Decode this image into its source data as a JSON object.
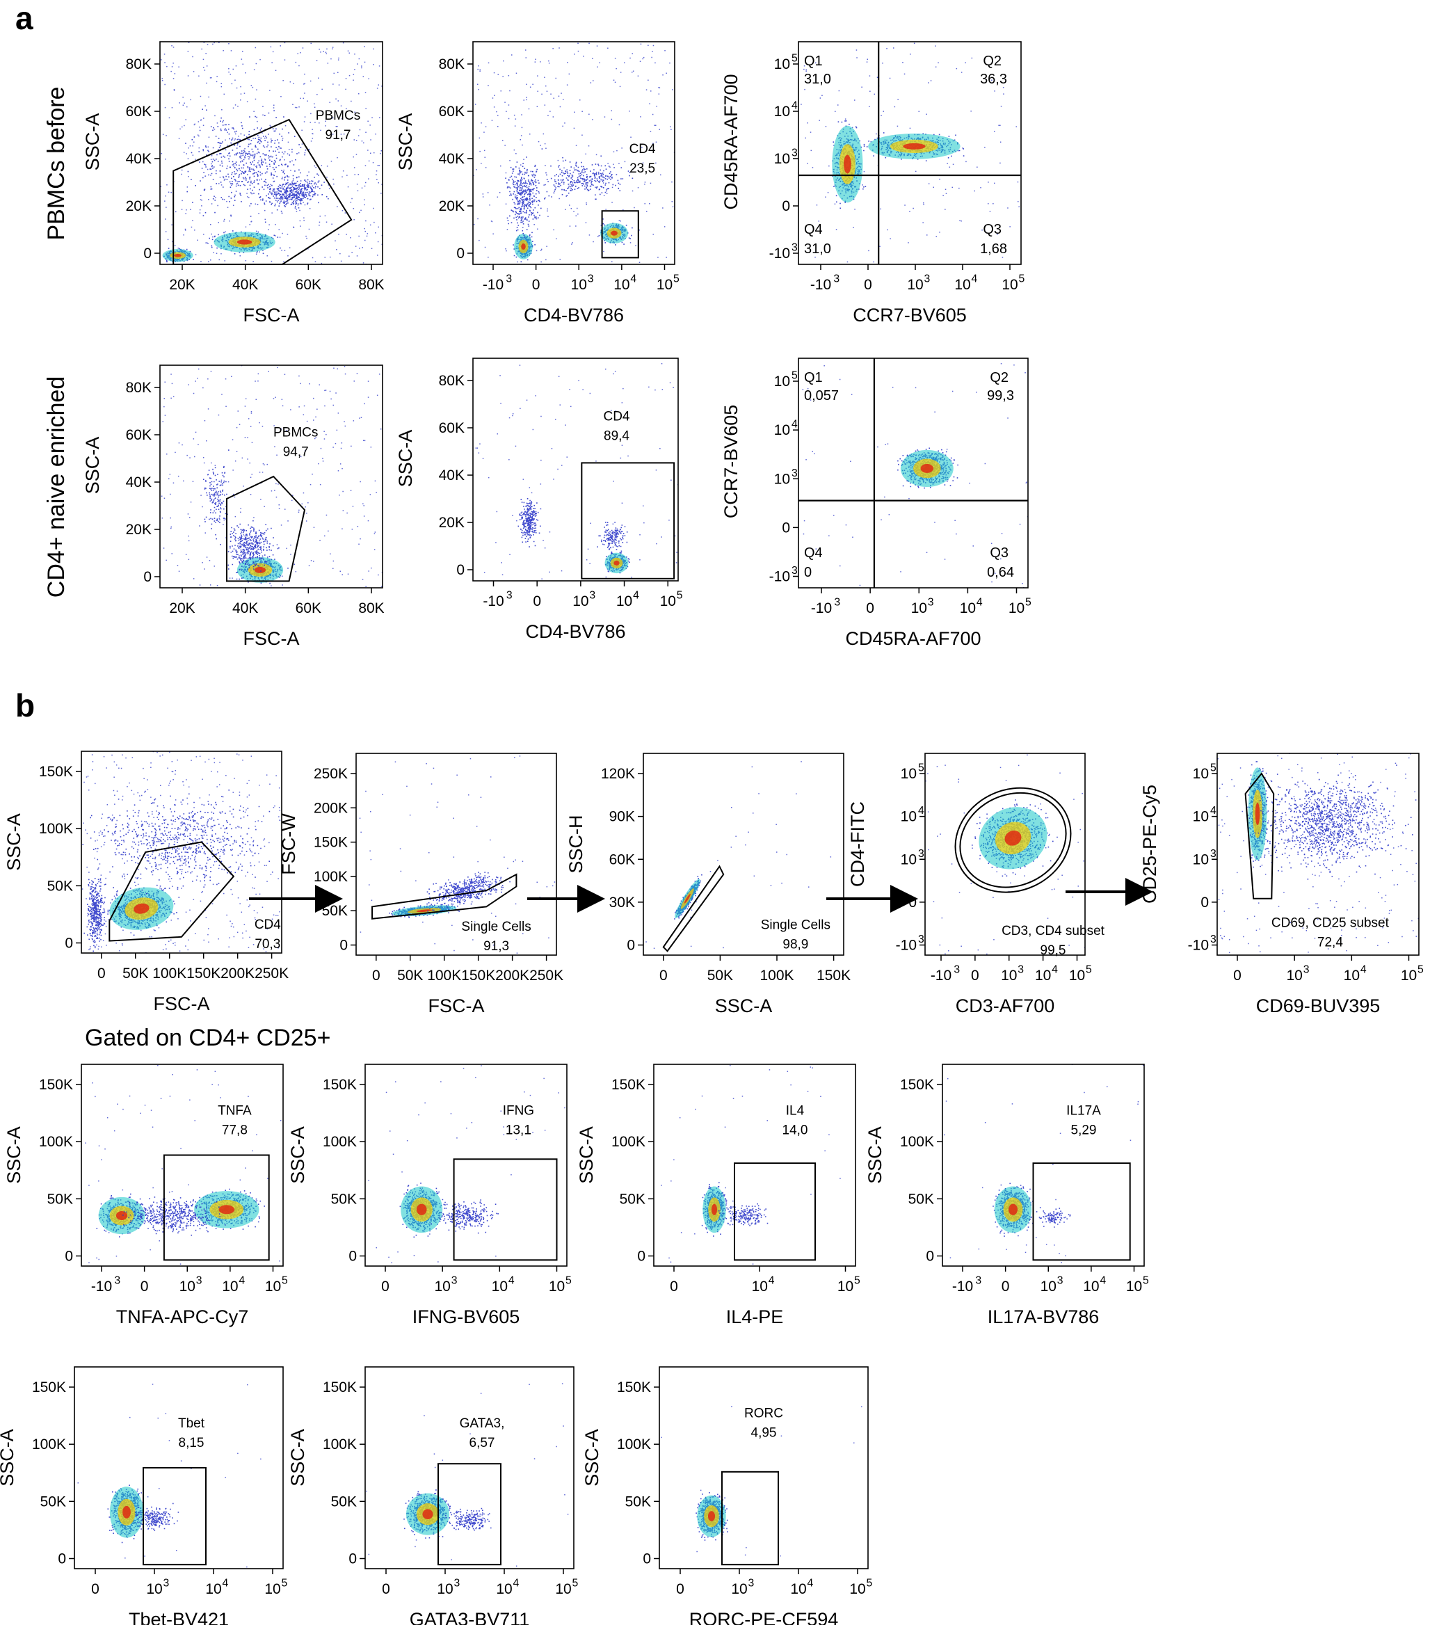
{
  "figure": {
    "panel_a_label": "a",
    "panel_b_label": "b",
    "row_labels": [
      "PBMCs before",
      "CD4+ naive enriched"
    ],
    "gated_heading": "Gated on CD4+ CD25+"
  },
  "colors": {
    "frame": "#000000",
    "dots": "#2a35c8",
    "density_mid": "#19c8c8",
    "density_high": "#ffd000",
    "density_peak": "#e02010"
  },
  "chart_data": [
    {
      "type": "scatter",
      "id": "a1",
      "panel": "a",
      "row": 1,
      "xlabel": "FSC-A",
      "ylabel": "SSC-A",
      "xticks": [
        "20K",
        "40K",
        "60K",
        "80K"
      ],
      "yticks": [
        "0",
        "20K",
        "40K",
        "60K",
        "80K"
      ],
      "gates": [
        {
          "name": "PBMCs",
          "value": "91,7"
        }
      ]
    },
    {
      "type": "scatter",
      "id": "a2",
      "panel": "a",
      "row": 1,
      "xlabel": "CD4-BV786",
      "ylabel": "SSC-A",
      "xticks": [
        "-10^3",
        "0",
        "10^3",
        "10^4",
        "10^5"
      ],
      "yticks": [
        "0",
        "20K",
        "40K",
        "60K",
        "80K"
      ],
      "gates": [
        {
          "name": "CD4",
          "value": "23,5"
        }
      ]
    },
    {
      "type": "scatter",
      "id": "a3",
      "panel": "a",
      "row": 1,
      "xlabel": "CCR7-BV605",
      "ylabel": "CD45RA-AF700",
      "xticks": [
        "-10^3",
        "0",
        "10^3",
        "10^4",
        "10^5"
      ],
      "yticks": [
        "-10^3",
        "0",
        "10^3",
        "10^4",
        "10^5"
      ],
      "quadrants": [
        {
          "name": "Q1",
          "value": "31,0"
        },
        {
          "name": "Q2",
          "value": "36,3"
        },
        {
          "name": "Q3",
          "value": "1,68"
        },
        {
          "name": "Q4",
          "value": "31,0"
        }
      ]
    },
    {
      "type": "scatter",
      "id": "a4",
      "panel": "a",
      "row": 2,
      "xlabel": "FSC-A",
      "ylabel": "SSC-A",
      "xticks": [
        "20K",
        "40K",
        "60K",
        "80K"
      ],
      "yticks": [
        "0",
        "20K",
        "40K",
        "60K",
        "80K"
      ],
      "gates": [
        {
          "name": "PBMCs",
          "value": "94,7"
        }
      ]
    },
    {
      "type": "scatter",
      "id": "a5",
      "panel": "a",
      "row": 2,
      "xlabel": "CD4-BV786",
      "ylabel": "SSC-A",
      "xticks": [
        "-10^3",
        "0",
        "10^3",
        "10^4",
        "10^5"
      ],
      "yticks": [
        "0",
        "20K",
        "40K",
        "60K",
        "80K"
      ],
      "gates": [
        {
          "name": "CD4",
          "value": "89,4"
        }
      ]
    },
    {
      "type": "scatter",
      "id": "a6",
      "panel": "a",
      "row": 2,
      "xlabel": "CD45RA-AF700",
      "ylabel": "CCR7-BV605",
      "xticks": [
        "-10^3",
        "0",
        "10^3",
        "10^4",
        "10^5"
      ],
      "yticks": [
        "-10^3",
        "0",
        "10^3",
        "10^4",
        "10^5"
      ],
      "quadrants": [
        {
          "name": "Q1",
          "value": "0,057"
        },
        {
          "name": "Q2",
          "value": "99,3"
        },
        {
          "name": "Q3",
          "value": "0,64"
        },
        {
          "name": "Q4",
          "value": "0"
        }
      ]
    },
    {
      "type": "scatter",
      "id": "b1",
      "panel": "b",
      "row": 1,
      "xlabel": "FSC-A",
      "ylabel": "SSC-A",
      "xticks": [
        "0",
        "50K",
        "100K",
        "150K",
        "200K",
        "250K"
      ],
      "yticks": [
        "0",
        "50K",
        "100K",
        "150K"
      ],
      "gates": [
        {
          "name": "CD4",
          "value": "70,3"
        }
      ]
    },
    {
      "type": "scatter",
      "id": "b2",
      "panel": "b",
      "row": 1,
      "xlabel": "FSC-A",
      "ylabel": "FSC-W",
      "xticks": [
        "0",
        "50K",
        "100K",
        "150K",
        "200K",
        "250K"
      ],
      "yticks": [
        "0",
        "50K",
        "100K",
        "150K",
        "200K",
        "250K"
      ],
      "gates": [
        {
          "name": "Single Cells",
          "value": "91,3"
        }
      ]
    },
    {
      "type": "scatter",
      "id": "b3",
      "panel": "b",
      "row": 1,
      "xlabel": "SSC-A",
      "ylabel": "SSC-H",
      "xticks": [
        "0",
        "50K",
        "100K",
        "150K"
      ],
      "yticks": [
        "0",
        "30K",
        "60K",
        "90K",
        "120K"
      ],
      "gates": [
        {
          "name": "Single Cells",
          "value": "98,9"
        }
      ]
    },
    {
      "type": "scatter",
      "id": "b4",
      "panel": "b",
      "row": 1,
      "xlabel": "CD3-AF700",
      "ylabel": "CD4-FITC",
      "xticks": [
        "-10^3",
        "0",
        "10^3",
        "10^4",
        "10^5"
      ],
      "yticks": [
        "-10^3",
        "0",
        "10^3",
        "10^4",
        "10^5"
      ],
      "gates": [
        {
          "name": "CD3, CD4 subset",
          "value": "99,5"
        }
      ]
    },
    {
      "type": "scatter",
      "id": "b5",
      "panel": "b",
      "row": 1,
      "xlabel": "CD69-BUV395",
      "ylabel": "CD25-PE-Cy5",
      "xticks": [
        "0",
        "10^3",
        "10^4",
        "10^5"
      ],
      "yticks": [
        "-10^3",
        "0",
        "10^3",
        "10^4",
        "10^5"
      ],
      "gates": [
        {
          "name": "CD69, CD25 subset",
          "value": "72,4"
        }
      ]
    },
    {
      "type": "scatter",
      "id": "b6",
      "panel": "b",
      "row": 2,
      "xlabel": "TNFA-APC-Cy7",
      "ylabel": "SSC-A",
      "xticks": [
        "-10^3",
        "0",
        "10^3",
        "10^4",
        "10^5"
      ],
      "yticks": [
        "0",
        "50K",
        "100K",
        "150K"
      ],
      "gates": [
        {
          "name": "TNFA",
          "value": "77,8"
        }
      ]
    },
    {
      "type": "scatter",
      "id": "b7",
      "panel": "b",
      "row": 2,
      "xlabel": "IFNG-BV605",
      "ylabel": "SSC-A",
      "xticks": [
        "0",
        "10^3",
        "10^4",
        "10^5"
      ],
      "yticks": [
        "0",
        "50K",
        "100K",
        "150K"
      ],
      "gates": [
        {
          "name": "IFNG",
          "value": "13,1"
        }
      ]
    },
    {
      "type": "scatter",
      "id": "b8",
      "panel": "b",
      "row": 2,
      "xlabel": "IL4-PE",
      "ylabel": "SSC-A",
      "xticks": [
        "0",
        "10^4",
        "10^5"
      ],
      "yticks": [
        "0",
        "50K",
        "100K",
        "150K"
      ],
      "gates": [
        {
          "name": "IL4",
          "value": "14,0"
        }
      ]
    },
    {
      "type": "scatter",
      "id": "b9",
      "panel": "b",
      "row": 2,
      "xlabel": "IL17A-BV786",
      "ylabel": "SSC-A",
      "xticks": [
        "-10^3",
        "0",
        "10^3",
        "10^4",
        "10^5"
      ],
      "yticks": [
        "0",
        "50K",
        "100K",
        "150K"
      ],
      "gates": [
        {
          "name": "IL17A",
          "value": "5,29"
        }
      ]
    },
    {
      "type": "scatter",
      "id": "b10",
      "panel": "b",
      "row": 3,
      "xlabel": "Tbet-BV421",
      "ylabel": "SSC-A",
      "xticks": [
        "0",
        "10^3",
        "10^4",
        "10^5"
      ],
      "yticks": [
        "0",
        "50K",
        "100K",
        "150K"
      ],
      "gates": [
        {
          "name": "Tbet",
          "value": "8,15"
        }
      ]
    },
    {
      "type": "scatter",
      "id": "b11",
      "panel": "b",
      "row": 3,
      "xlabel": "GATA3-BV711",
      "ylabel": "SSC-A",
      "xticks": [
        "0",
        "10^3",
        "10^4",
        "10^5"
      ],
      "yticks": [
        "0",
        "50K",
        "100K",
        "150K"
      ],
      "gates": [
        {
          "name": "GATA3,",
          "value": "6,57"
        }
      ]
    },
    {
      "type": "scatter",
      "id": "b12",
      "panel": "b",
      "row": 3,
      "xlabel": "RORC-PE-CF594",
      "ylabel": "SSC-A",
      "xticks": [
        "0",
        "10^3",
        "10^4",
        "10^5"
      ],
      "yticks": [
        "0",
        "50K",
        "100K",
        "150K"
      ],
      "gates": [
        {
          "name": "RORC",
          "value": "4,95"
        }
      ]
    }
  ]
}
